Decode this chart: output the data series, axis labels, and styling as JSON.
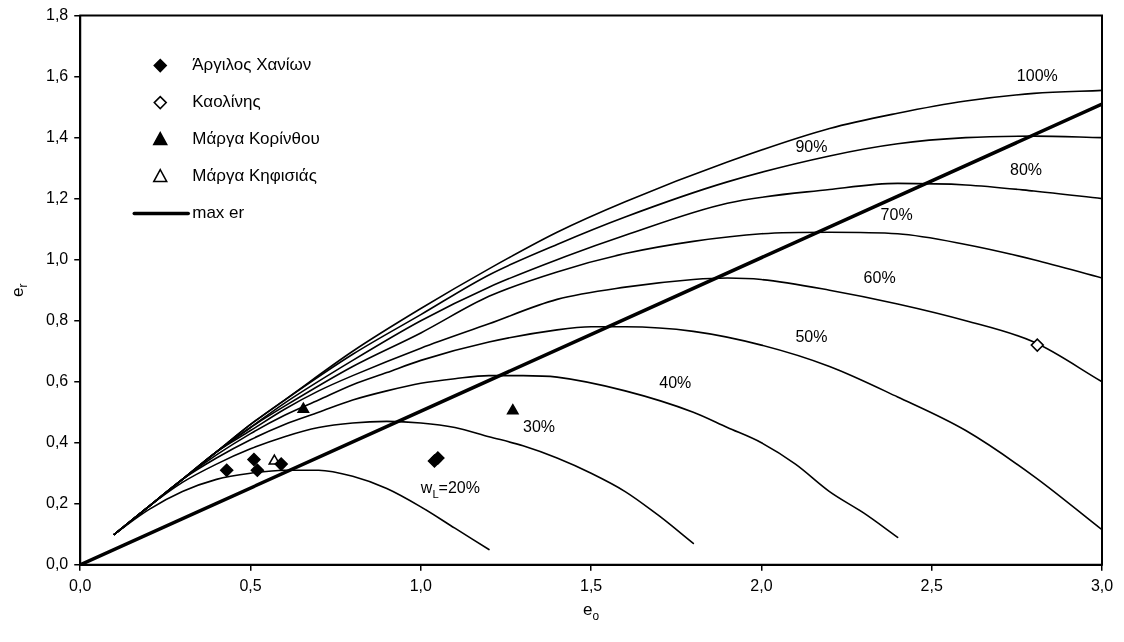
{
  "chart_data": {
    "type": "line",
    "xlabel": "e$_{o}$",
    "ylabel": "e$_{r}$",
    "xlim": [
      0,
      3
    ],
    "ylim": [
      0,
      1.8
    ],
    "xticks": [
      {
        "value": 0,
        "label": "0,0"
      },
      {
        "value": 0.5,
        "label": "0,5"
      },
      {
        "value": 1,
        "label": "1,0"
      },
      {
        "value": 1.5,
        "label": "1,5"
      },
      {
        "value": 2,
        "label": "2,0"
      },
      {
        "value": 2.5,
        "label": "2,5"
      },
      {
        "value": 3,
        "label": "3,0"
      }
    ],
    "yticks": [
      {
        "value": 0,
        "label": "0,0"
      },
      {
        "value": 0.2,
        "label": "0,2"
      },
      {
        "value": 0.4,
        "label": "0,4"
      },
      {
        "value": 0.6,
        "label": "0,6"
      },
      {
        "value": 0.8,
        "label": "0,8"
      },
      {
        "value": 1,
        "label": "1,0"
      },
      {
        "value": 1.2,
        "label": "1,2"
      },
      {
        "value": 1.4,
        "label": "1,4"
      },
      {
        "value": 1.6,
        "label": "1,6"
      },
      {
        "value": 1.8,
        "label": "1,8"
      }
    ],
    "grid": false,
    "legend": "top left",
    "marker": "none",
    "line_style": "solid",
    "series": [
      {
        "name": "Άργιλος Χανίων",
        "type": "scatter",
        "marker": "diamond",
        "color": "#000000",
        "x": [
          0.43,
          0.51,
          0.52,
          0.59,
          1.04,
          1.05
        ],
        "values": [
          0.31,
          0.345,
          0.31,
          0.33,
          0.34,
          0.35
        ]
      },
      {
        "name": "Καολίνης",
        "type": "scatter",
        "marker": "diamond",
        "color": "#ffffff",
        "x": [
          2.81
        ],
        "values": [
          0.72
        ]
      },
      {
        "name": "Μάργα Κορίνθου",
        "type": "scatter",
        "marker": "triangle",
        "color": "#000000",
        "x": [
          0.655,
          1.27
        ],
        "values": [
          0.51,
          0.505
        ]
      },
      {
        "name": "Μάργα Κηφισιάς",
        "type": "scatter",
        "marker": "triangle",
        "color": "#ffffff",
        "x": [
          0.57
        ],
        "values": [
          0.34
        ]
      },
      {
        "name": "max er",
        "type": "line",
        "color": "#000000",
        "x": [
          0,
          3
        ],
        "values": [
          0,
          1.51
        ]
      },
      {
        "type": "line",
        "color": "#000000",
        "x": [
          0.1,
          0.2,
          0.3,
          0.4,
          0.5,
          0.6,
          0.7,
          0.8,
          0.9,
          1.0,
          1.1,
          1.2
        ],
        "values": [
          0.1,
          0.18,
          0.24,
          0.28,
          0.3,
          0.31,
          0.31,
          0.29,
          0.25,
          0.19,
          0.12,
          0.05
        ]
      },
      {
        "type": "line",
        "color": "#000000",
        "x": [
          0.1,
          0.2,
          0.3,
          0.4,
          0.5,
          0.6,
          0.7,
          0.8,
          0.9,
          1.0,
          1.1,
          1.2,
          1.3,
          1.4,
          1.5,
          1.6,
          1.7,
          1.8
        ],
        "values": [
          0.1,
          0.19,
          0.27,
          0.33,
          0.38,
          0.42,
          0.45,
          0.465,
          0.47,
          0.465,
          0.45,
          0.42,
          0.39,
          0.35,
          0.3,
          0.24,
          0.16,
          0.07
        ]
      },
      {
        "type": "line",
        "color": "#000000",
        "x": [
          0.1,
          0.2,
          0.3,
          0.4,
          0.5,
          0.6,
          0.7,
          0.8,
          0.9,
          1.0,
          1.1,
          1.2,
          1.3,
          1.4,
          1.6,
          1.8,
          1.9,
          2.0,
          2.1,
          2.2,
          2.3,
          2.4
        ],
        "values": [
          0.1,
          0.19,
          0.28,
          0.35,
          0.41,
          0.46,
          0.5,
          0.54,
          0.57,
          0.595,
          0.61,
          0.62,
          0.62,
          0.615,
          0.57,
          0.5,
          0.45,
          0.4,
          0.33,
          0.24,
          0.17,
          0.09
        ]
      },
      {
        "type": "line",
        "color": "#000000",
        "x": [
          0.1,
          0.2,
          0.3,
          0.4,
          0.5,
          0.6,
          0.7,
          0.8,
          0.9,
          1.0,
          1.2,
          1.4,
          1.5,
          1.6,
          1.8,
          2.0,
          2.2,
          2.4,
          2.6,
          2.8,
          3.0
        ],
        "values": [
          0.1,
          0.19,
          0.28,
          0.36,
          0.43,
          0.49,
          0.54,
          0.59,
          0.63,
          0.67,
          0.73,
          0.77,
          0.78,
          0.78,
          0.765,
          0.72,
          0.65,
          0.55,
          0.44,
          0.29,
          0.115
        ]
      },
      {
        "type": "line",
        "color": "#000000",
        "x": [
          0.1,
          0.2,
          0.3,
          0.4,
          0.5,
          0.6,
          0.7,
          0.8,
          1.0,
          1.2,
          1.4,
          1.6,
          1.8,
          1.9,
          2.0,
          2.2,
          2.4,
          2.6,
          2.8,
          3.0
        ],
        "values": [
          0.1,
          0.19,
          0.28,
          0.37,
          0.44,
          0.51,
          0.57,
          0.62,
          0.71,
          0.79,
          0.87,
          0.91,
          0.935,
          0.94,
          0.935,
          0.9,
          0.855,
          0.8,
          0.73,
          0.6
        ]
      },
      {
        "type": "line",
        "color": "#000000",
        "x": [
          0.1,
          0.2,
          0.3,
          0.4,
          0.5,
          0.6,
          0.8,
          1.0,
          1.2,
          1.4,
          1.6,
          1.8,
          2.0,
          2.2,
          2.4,
          2.6,
          2.8,
          3.0
        ],
        "values": [
          0.1,
          0.19,
          0.28,
          0.37,
          0.45,
          0.52,
          0.65,
          0.76,
          0.88,
          0.96,
          1.02,
          1.06,
          1.085,
          1.09,
          1.085,
          1.05,
          1.0,
          0.94
        ]
      },
      {
        "type": "line",
        "color": "#000000",
        "x": [
          0.1,
          0.2,
          0.3,
          0.4,
          0.5,
          0.6,
          0.8,
          1.0,
          1.2,
          1.4,
          1.6,
          1.9,
          2.2,
          2.4,
          2.6,
          2.8,
          3.0
        ],
        "values": [
          0.1,
          0.19,
          0.28,
          0.37,
          0.45,
          0.53,
          0.67,
          0.8,
          0.91,
          1.0,
          1.08,
          1.185,
          1.23,
          1.25,
          1.245,
          1.225,
          1.2
        ]
      },
      {
        "type": "line",
        "color": "#000000",
        "x": [
          0.1,
          0.2,
          0.3,
          0.4,
          0.5,
          0.6,
          0.8,
          1.0,
          1.2,
          1.4,
          1.6,
          1.9,
          2.2,
          2.4,
          2.6,
          2.8,
          3.0
        ],
        "values": [
          0.1,
          0.19,
          0.28,
          0.37,
          0.46,
          0.54,
          0.69,
          0.82,
          0.95,
          1.05,
          1.14,
          1.255,
          1.34,
          1.38,
          1.4,
          1.405,
          1.4
        ]
      },
      {
        "type": "line",
        "color": "#000000",
        "x": [
          0.1,
          0.2,
          0.3,
          0.4,
          0.5,
          0.6,
          0.8,
          1.0,
          1.2,
          1.4,
          1.6,
          1.9,
          2.2,
          2.4,
          2.6,
          2.8,
          3.0
        ],
        "values": [
          0.1,
          0.19,
          0.28,
          0.37,
          0.46,
          0.54,
          0.7,
          0.84,
          0.97,
          1.09,
          1.19,
          1.32,
          1.43,
          1.48,
          1.52,
          1.545,
          1.555
        ]
      }
    ],
    "annotations": [
      {
        "text": "100%",
        "x": 2.75,
        "y": 1.54
      },
      {
        "text": "90%",
        "x": 2.1,
        "y": 1.31
      },
      {
        "text": "80%",
        "x": 2.73,
        "y": 1.232
      },
      {
        "text": "70%",
        "x": 2.35,
        "y": 1.087
      },
      {
        "text": "60%",
        "x": 2.3,
        "y": 0.88
      },
      {
        "text": "50%",
        "x": 2.1,
        "y": 0.685
      },
      {
        "text": "40%",
        "x": 1.7,
        "y": 0.535
      },
      {
        "text": "30%",
        "x": 1.3,
        "y": 0.39
      },
      {
        "text": "w$_{L}$=20%",
        "x": 1.0,
        "y": 0.19
      }
    ]
  }
}
